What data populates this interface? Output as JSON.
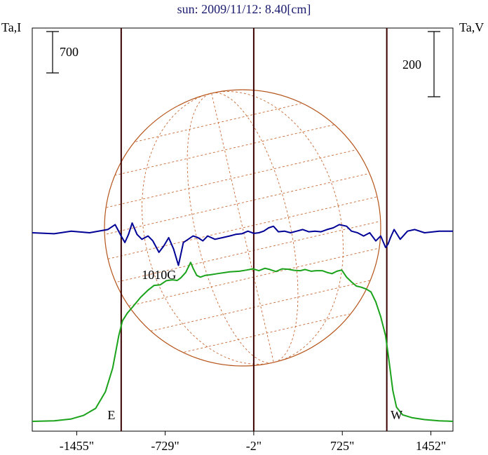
{
  "chart_data": {
    "type": "line",
    "title": "sun: 2009/11/12: 8.40[cm]",
    "left_axis_label": "Ta,I",
    "right_axis_label": "Ta,V",
    "x_ticks": [
      -1455,
      -729,
      -2,
      725,
      1452
    ],
    "x_tick_labels": [
      "-1455\"",
      "-729\"",
      "-2\"",
      "725\"",
      "1452\""
    ],
    "xlim": [
      -1820,
      1633
    ],
    "scale_bars": {
      "intensity": "700",
      "polarization": "200"
    },
    "limb_markers": [
      {
        "label": "E",
        "x": -1090
      },
      {
        "label": "W",
        "x": 1090
      }
    ],
    "annotations": [
      {
        "text": "1010G",
        "x": -780
      }
    ],
    "series": [
      {
        "key": "intensity",
        "color": "#1aa31a",
        "x": [
          -1820,
          -1640,
          -1500,
          -1400,
          -1300,
          -1220,
          -1160,
          -1110,
          -1080,
          -1040,
          -990,
          -930,
          -870,
          -820,
          -770,
          -720,
          -670,
          -630,
          -600,
          -560,
          -520,
          -500,
          -470,
          -440,
          -400,
          -360,
          -300,
          -200,
          -120,
          -60,
          -10,
          40,
          90,
          130,
          180,
          230,
          280,
          330,
          380,
          420,
          470,
          510,
          560,
          600,
          640,
          680,
          720,
          760,
          800,
          840,
          880,
          920,
          960,
          1000,
          1040,
          1080,
          1110,
          1140,
          1170,
          1220,
          1300,
          1400,
          1520,
          1633
        ],
        "y": [
          0,
          10,
          40,
          100,
          220,
          500,
          900,
          1450,
          1700,
          1830,
          1950,
          2100,
          2220,
          2300,
          2310,
          2380,
          2395,
          2385,
          2430,
          2520,
          2690,
          2590,
          2470,
          2440,
          2470,
          2480,
          2500,
          2530,
          2540,
          2560,
          2580,
          2550,
          2590,
          2570,
          2535,
          2580,
          2575,
          2555,
          2550,
          2570,
          2540,
          2550,
          2550,
          2520,
          2500,
          2540,
          2560,
          2440,
          2360,
          2290,
          2270,
          2240,
          2190,
          2020,
          1770,
          1450,
          1000,
          520,
          240,
          110,
          60,
          30,
          10,
          0
        ]
      },
      {
        "key": "polarization",
        "color": "#000096",
        "x": [
          -1820,
          -1640,
          -1500,
          -1350,
          -1200,
          -1140,
          -1090,
          -1060,
          -1030,
          -1000,
          -960,
          -920,
          -870,
          -830,
          -780,
          -740,
          -700,
          -660,
          -620,
          -580,
          -540,
          -500,
          -460,
          -420,
          -380,
          -320,
          -260,
          -200,
          -150,
          -100,
          -50,
          0,
          40,
          80,
          120,
          160,
          200,
          250,
          300,
          350,
          400,
          450,
          500,
          550,
          600,
          650,
          700,
          760,
          800,
          850,
          900,
          950,
          1000,
          1040,
          1080,
          1100,
          1120,
          1150,
          1200,
          1260,
          1320,
          1400,
          1520,
          1633
        ],
        "y": [
          0,
          -3,
          5,
          0,
          10,
          25,
          -10,
          -30,
          -5,
          30,
          -5,
          -20,
          -10,
          -25,
          -60,
          -40,
          -15,
          -50,
          -100,
          -30,
          -20,
          -10,
          -15,
          -25,
          -10,
          -20,
          -15,
          -10,
          -5,
          -3,
          5,
          -2,
          0,
          5,
          15,
          20,
          3,
          5,
          0,
          5,
          10,
          3,
          5,
          3,
          10,
          15,
          25,
          20,
          5,
          0,
          -10,
          0,
          -25,
          -10,
          -45,
          -35,
          -15,
          10,
          -20,
          5,
          10,
          0,
          5,
          5
        ]
      }
    ]
  }
}
